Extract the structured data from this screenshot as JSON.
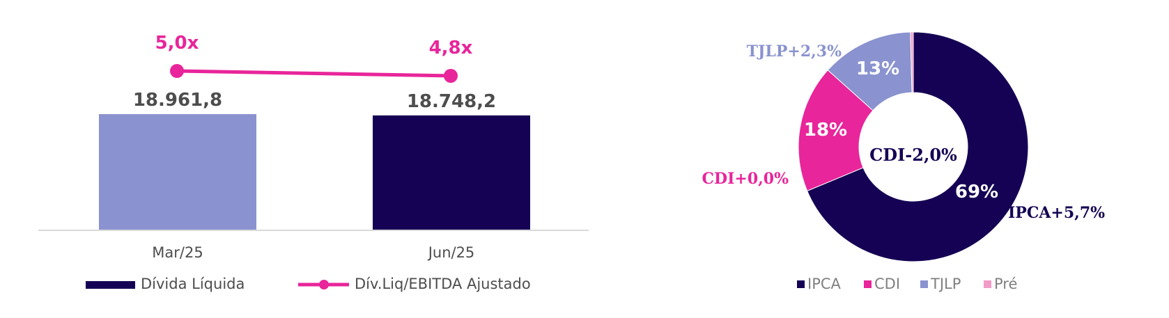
{
  "chart_data": [
    {
      "type": "bar",
      "categories": [
        "Mar/25",
        "Jun/25"
      ],
      "series": [
        {
          "name": "Dívida Líquida",
          "values": [
            18961.8,
            18748.2
          ],
          "value_labels": [
            "18.961,8",
            "18.748,2"
          ],
          "colors": [
            "#8a93cf",
            "#150254"
          ]
        },
        {
          "name": "Dív.Liq/EBITDA Ajustado",
          "type": "line",
          "values": [
            5.0,
            4.8
          ],
          "value_labels": [
            "5,0x",
            "4,8x"
          ],
          "color": "#e8259a"
        }
      ],
      "legend": [
        {
          "label": "Dívida Líquida",
          "color": "#150254",
          "marker": "bar"
        },
        {
          "label": "Dív.Liq/EBITDA Ajustado",
          "color": "#e8259a",
          "marker": "line"
        }
      ],
      "legend_position": "bottom",
      "grid": false
    },
    {
      "type": "pie",
      "donut": true,
      "center_label": "CDI-2,0%",
      "slices": [
        {
          "name": "IPCA",
          "value": 69,
          "label": "69%",
          "callout": "IPCA+5,7%",
          "color": "#150254"
        },
        {
          "name": "CDI",
          "value": 18,
          "label": "18%",
          "callout": "CDI+0,0%",
          "color": "#e8259a"
        },
        {
          "name": "TJLP",
          "value": 13,
          "label": "13%",
          "callout": "TJLP+2,3%",
          "color": "#8a93cf"
        },
        {
          "name": "Pré",
          "value": 0.4,
          "label": "",
          "callout": "",
          "color": "#f29bc7"
        }
      ],
      "legend": [
        "IPCA",
        "CDI",
        "TJLP",
        "Pré"
      ],
      "legend_position": "bottom"
    }
  ]
}
